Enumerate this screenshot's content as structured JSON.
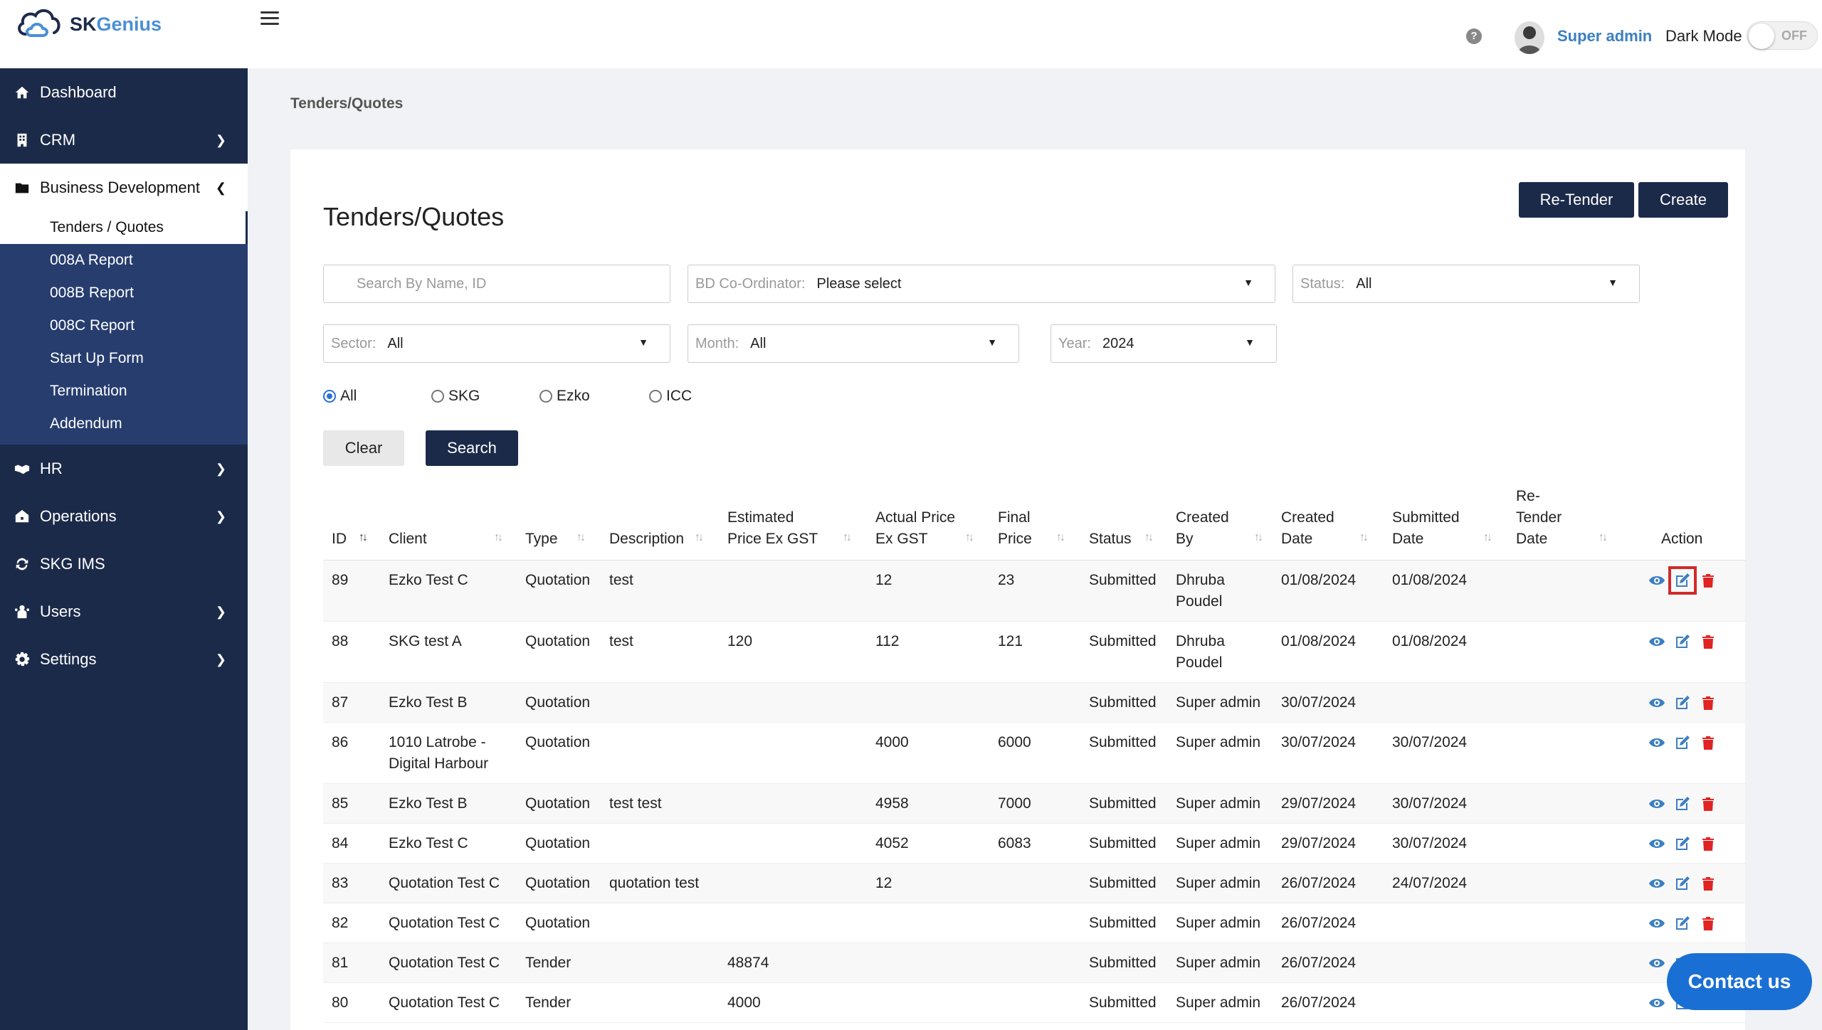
{
  "app": {
    "logo_part1": "SK",
    "logo_part2": "Genius"
  },
  "header": {
    "help_glyph": "?",
    "user_name": "Super admin",
    "dark_mode_label": "Dark Mode",
    "dark_mode_state": "OFF"
  },
  "sidebar": {
    "items": [
      {
        "label": "Dashboard",
        "icon": "home-icon"
      },
      {
        "label": "CRM",
        "icon": "building-icon"
      },
      {
        "label": "Business Development",
        "icon": "folder-icon"
      },
      {
        "label": "HR",
        "icon": "handshake-icon"
      },
      {
        "label": "Operations",
        "icon": "briefcase-icon"
      },
      {
        "label": "SKG IMS",
        "icon": "refresh-icon"
      },
      {
        "label": "Users",
        "icon": "users-icon"
      },
      {
        "label": "Settings",
        "icon": "gear-icon"
      }
    ],
    "submenu": [
      "Tenders / Quotes",
      "008A Report",
      "008B Report",
      "008C Report",
      "Start Up Form",
      "Termination",
      "Addendum"
    ]
  },
  "breadcrumb": "Tenders/Quotes",
  "page": {
    "title": "Tenders/Quotes",
    "re_tender_label": "Re-Tender",
    "create_label": "Create"
  },
  "filters": {
    "search_placeholder": "Search By Name, ID",
    "bd_label": "BD Co-Ordinator:",
    "bd_value": "Please select",
    "status_label": "Status:",
    "status_value": "All",
    "sector_label": "Sector:",
    "sector_value": "All",
    "month_label": "Month:",
    "month_value": "All",
    "year_label": "Year:",
    "year_value": "2024",
    "radios": [
      "All",
      "SKG",
      "Ezko",
      "ICC"
    ],
    "radio_selected": "All",
    "clear_label": "Clear",
    "search_label": "Search"
  },
  "table": {
    "headers": {
      "id": "ID",
      "client": "Client",
      "type": "Type",
      "description": "Description",
      "est_price": [
        "Estimated",
        "Price Ex GST"
      ],
      "actual_price": [
        "Actual Price",
        "Ex GST"
      ],
      "final_price": [
        "Final",
        "Price"
      ],
      "status": "Status",
      "created_by": [
        "Created",
        "By"
      ],
      "created_date": [
        "Created",
        "Date"
      ],
      "submitted_date": [
        "Submitted",
        "Date"
      ],
      "retender_date": [
        "Re-",
        "Tender",
        "Date"
      ],
      "action": "Action"
    },
    "rows": [
      {
        "id": "89",
        "client": [
          "Ezko Test C"
        ],
        "type": "Quotation",
        "description": "test",
        "est": "",
        "actual": "12",
        "final": "23",
        "status": "Submitted",
        "created_by": [
          "Dhruba",
          "Poudel"
        ],
        "created_date": "01/08/2024",
        "submitted_date": "01/08/2024",
        "retender": ""
      },
      {
        "id": "88",
        "client": [
          "SKG test A"
        ],
        "type": "Quotation",
        "description": "test",
        "est": "120",
        "actual": "112",
        "final": "121",
        "status": "Submitted",
        "created_by": [
          "Dhruba",
          "Poudel"
        ],
        "created_date": "01/08/2024",
        "submitted_date": "01/08/2024",
        "retender": ""
      },
      {
        "id": "87",
        "client": [
          "Ezko Test B"
        ],
        "type": "Quotation",
        "description": "",
        "est": "",
        "actual": "",
        "final": "",
        "status": "Submitted",
        "created_by": [
          "Super admin"
        ],
        "created_date": "30/07/2024",
        "submitted_date": "",
        "retender": ""
      },
      {
        "id": "86",
        "client": [
          "1010 Latrobe -",
          "Digital Harbour"
        ],
        "type": "Quotation",
        "description": "",
        "est": "",
        "actual": "4000",
        "final": "6000",
        "status": "Submitted",
        "created_by": [
          "Super admin"
        ],
        "created_date": "30/07/2024",
        "submitted_date": "30/07/2024",
        "retender": ""
      },
      {
        "id": "85",
        "client": [
          "Ezko Test B"
        ],
        "type": "Quotation",
        "description": "test test",
        "est": "",
        "actual": "4958",
        "final": "7000",
        "status": "Submitted",
        "created_by": [
          "Super admin"
        ],
        "created_date": "29/07/2024",
        "submitted_date": "30/07/2024",
        "retender": ""
      },
      {
        "id": "84",
        "client": [
          "Ezko Test C"
        ],
        "type": "Quotation",
        "description": "",
        "est": "",
        "actual": "4052",
        "final": "6083",
        "status": "Submitted",
        "created_by": [
          "Super admin"
        ],
        "created_date": "29/07/2024",
        "submitted_date": "30/07/2024",
        "retender": ""
      },
      {
        "id": "83",
        "client": [
          "Quotation Test C"
        ],
        "type": "Quotation",
        "description": "quotation test",
        "est": "",
        "actual": "12",
        "final": "",
        "status": "Submitted",
        "created_by": [
          "Super admin"
        ],
        "created_date": "26/07/2024",
        "submitted_date": "24/07/2024",
        "retender": ""
      },
      {
        "id": "82",
        "client": [
          "Quotation Test C"
        ],
        "type": "Quotation",
        "description": "",
        "est": "",
        "actual": "",
        "final": "",
        "status": "Submitted",
        "created_by": [
          "Super admin"
        ],
        "created_date": "26/07/2024",
        "submitted_date": "",
        "retender": ""
      },
      {
        "id": "81",
        "client": [
          "Quotation Test C"
        ],
        "type": "Tender",
        "description": "",
        "est": "48874",
        "actual": "",
        "final": "",
        "status": "Submitted",
        "created_by": [
          "Super admin"
        ],
        "created_date": "26/07/2024",
        "submitted_date": "",
        "retender": ""
      },
      {
        "id": "80",
        "client": [
          "Quotation Test C"
        ],
        "type": "Tender",
        "description": "",
        "est": "4000",
        "actual": "",
        "final": "",
        "status": "Submitted",
        "created_by": [
          "Super admin"
        ],
        "created_date": "26/07/2024",
        "submitted_date": "",
        "retender": ""
      }
    ]
  },
  "contact_label": "Contact us",
  "colors": {
    "sidebar": "#1c2a4a",
    "submenu": "#263d6e",
    "accent_blue": "#3d7fc1",
    "delete_red": "#e02424",
    "contact_blue": "#1a6fd4"
  }
}
